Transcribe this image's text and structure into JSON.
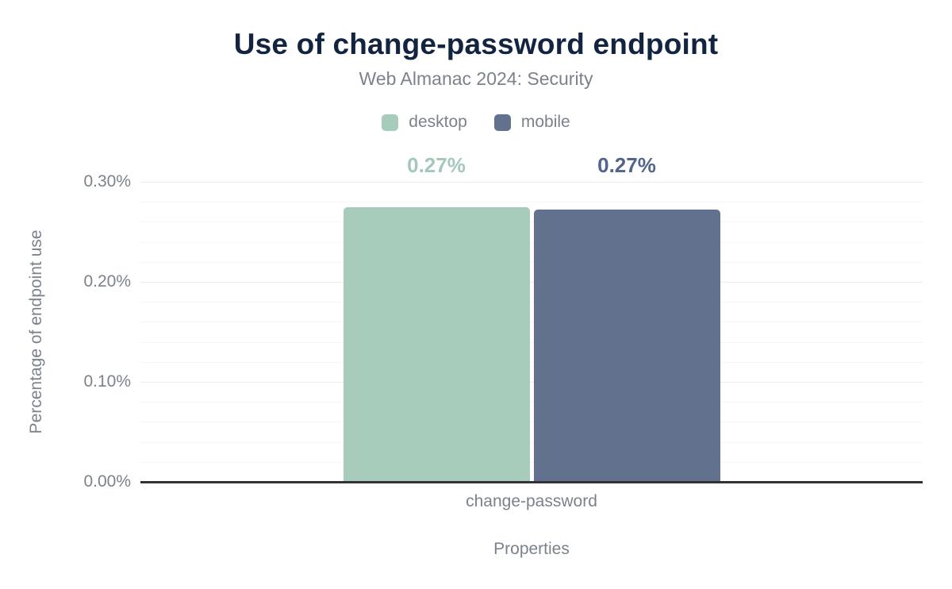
{
  "header": {
    "title": "Use of change-password endpoint",
    "subtitle": "Web Almanac 2024: Security"
  },
  "chart_data": {
    "type": "bar",
    "title": "Use of change-password endpoint",
    "subtitle": "Web Almanac 2024: Security",
    "categories": [
      "change-password"
    ],
    "series": [
      {
        "name": "desktop",
        "values": [
          0.2746
        ],
        "label": "0.27%",
        "color": "#a8ccbc",
        "label_color": "#a4c9b8"
      },
      {
        "name": "mobile",
        "values": [
          0.2722
        ],
        "label": "0.27%",
        "color": "#62718e",
        "label_color": "#52658a"
      }
    ],
    "xlabel": "Properties",
    "ylabel": "Percentage of endpoint use",
    "ylim": [
      0,
      0.3
    ],
    "y_ticks": [
      {
        "value": 0.0,
        "label": "0.00%"
      },
      {
        "value": 0.1,
        "label": "0.10%"
      },
      {
        "value": 0.2,
        "label": "0.20%"
      },
      {
        "value": 0.3,
        "label": "0.30%"
      }
    ],
    "minor_grid_step": 0.02,
    "grid": "on",
    "legend_position": "top",
    "colors": {
      "title": "#122440",
      "text_gray": "#7b828c",
      "axis_line": "#313136",
      "grid_major": "#ebebee",
      "grid_minor": "#f6f6f7"
    }
  }
}
